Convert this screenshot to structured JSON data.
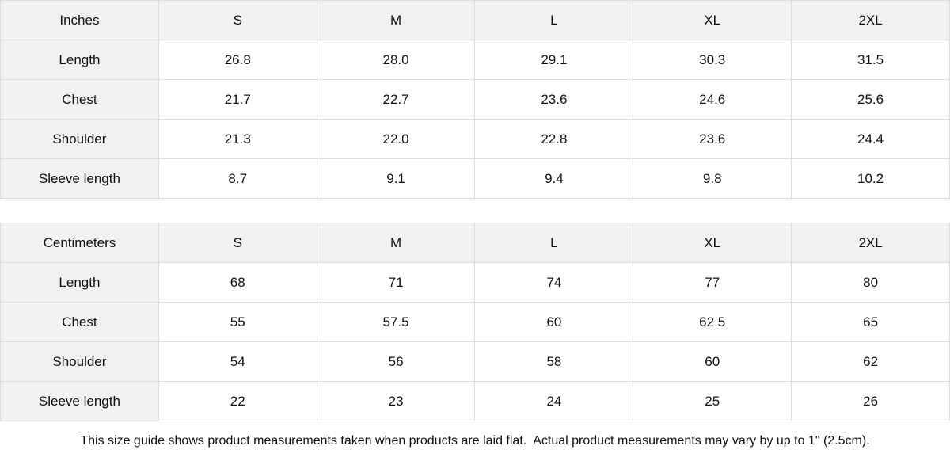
{
  "colors": {
    "header_bg": "#f1f1f1",
    "border": "#dddddd",
    "text": "#111111",
    "cell_bg": "#ffffff"
  },
  "tables": [
    {
      "unit_label": "Inches",
      "sizes": [
        "S",
        "M",
        "L",
        "XL",
        "2XL"
      ],
      "rows": [
        {
          "label": "Length",
          "values": [
            "26.8",
            "28.0",
            "29.1",
            "30.3",
            "31.5"
          ]
        },
        {
          "label": "Chest",
          "values": [
            "21.7",
            "22.7",
            "23.6",
            "24.6",
            "25.6"
          ]
        },
        {
          "label": "Shoulder",
          "values": [
            "21.3",
            "22.0",
            "22.8",
            "23.6",
            "24.4"
          ]
        },
        {
          "label": "Sleeve length",
          "values": [
            "8.7",
            "9.1",
            "9.4",
            "9.8",
            "10.2"
          ]
        }
      ]
    },
    {
      "unit_label": "Centimeters",
      "sizes": [
        "S",
        "M",
        "L",
        "XL",
        "2XL"
      ],
      "rows": [
        {
          "label": "Length",
          "values": [
            "68",
            "71",
            "74",
            "77",
            "80"
          ]
        },
        {
          "label": "Chest",
          "values": [
            "55",
            "57.5",
            "60",
            "62.5",
            "65"
          ]
        },
        {
          "label": "Shoulder",
          "values": [
            "54",
            "56",
            "58",
            "60",
            "62"
          ]
        },
        {
          "label": "Sleeve length",
          "values": [
            "22",
            "23",
            "24",
            "25",
            "26"
          ]
        }
      ]
    }
  ],
  "footer": {
    "note": "This size guide shows product measurements taken when products are laid flat.  Actual product measurements may vary by up to 1\" (2.5cm)."
  }
}
